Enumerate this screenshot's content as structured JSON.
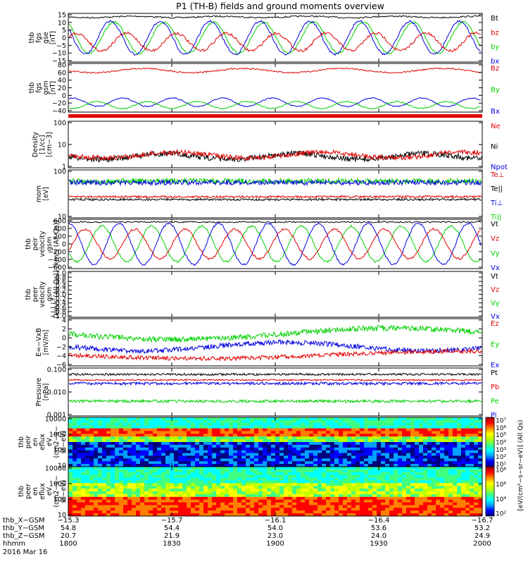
{
  "title": "P1 (TH-B) fields and ground moments overview",
  "colors": {
    "black": "#000000",
    "red": "#e00000",
    "green": "#00d000",
    "blue": "#0000e0"
  },
  "chart_data": [
    {
      "type": "line",
      "ylabel": [
        "thb",
        "fgs",
        "gse",
        "[nT]"
      ],
      "yticks": [
        "15",
        "10",
        "5",
        "0",
        "−5",
        "−10",
        "−15"
      ],
      "ylim": [
        -15,
        15
      ],
      "legend": [
        {
          "name": "Bt",
          "color": "black"
        },
        {
          "name": "bz",
          "color": "red"
        },
        {
          "name": "by",
          "color": "green"
        },
        {
          "name": "bx",
          "color": "blue"
        }
      ]
    },
    {
      "type": "line",
      "ylabel": [
        "thb",
        "fgs",
        "gsm",
        "[nT]"
      ],
      "yticks": [
        "80",
        "60",
        "40",
        "20",
        "0",
        "−20",
        "−40"
      ],
      "ylim": [
        -50,
        90
      ],
      "legend": [
        {
          "name": "Bz",
          "color": "red"
        },
        {
          "name": "By",
          "color": "green"
        },
        {
          "name": "Bx",
          "color": "blue"
        }
      ]
    },
    {
      "type": "line",
      "ylabel": [
        "Density",
        "[1/cc]",
        "[cm−3]"
      ],
      "yticks": [
        "100",
        "10",
        "1"
      ],
      "scale": "log",
      "ylim": [
        0.5,
        200
      ],
      "legend": [
        {
          "name": "Ne",
          "color": "red"
        },
        {
          "name": "Ni",
          "color": "black"
        },
        {
          "name": "Npot",
          "color": "blue"
        }
      ]
    },
    {
      "type": "line",
      "ylabel": [
        "mom",
        "[eV]"
      ],
      "yticks": [
        "100",
        "10"
      ],
      "scale": "log",
      "ylim": [
        3,
        600
      ],
      "legend": [
        {
          "name": "Te⊥",
          "color": "red"
        },
        {
          "name": "Te||",
          "color": "black"
        },
        {
          "name": "Ti⊥",
          "color": "blue"
        },
        {
          "name": "Ti||",
          "color": "green"
        }
      ]
    },
    {
      "type": "line",
      "ylabel": [
        "thb",
        "peir",
        "velocity",
        "gsm",
        "[km/s (All Qs)]"
      ],
      "yticks": [
        "600",
        "400",
        "200",
        "0",
        "−200",
        "−400",
        "−600"
      ],
      "ylim": [
        -650,
        650
      ],
      "legend": [
        {
          "name": "Vt",
          "color": "black"
        },
        {
          "name": "Vz",
          "color": "red"
        },
        {
          "name": "Vy",
          "color": "green"
        },
        {
          "name": "Vx",
          "color": "blue"
        }
      ]
    },
    {
      "type": "line",
      "ylabel": [
        "thb",
        "peer",
        "velocity",
        "gsm",
        "[km/s (All Qs)]"
      ],
      "yticks": [
        "1.0",
        "0.8",
        "0.6",
        "0.4",
        "0.2",
        "0.0",
        "−0.2",
        "−0.4",
        "−0.6",
        "−0.8",
        "−1.0"
      ],
      "ylim": [
        -1,
        1
      ],
      "legend": [
        {
          "name": "Vt",
          "color": "black"
        },
        {
          "name": "Vz",
          "color": "red"
        },
        {
          "name": "Vy",
          "color": "green"
        },
        {
          "name": "Vx",
          "color": "blue"
        }
      ]
    },
    {
      "type": "line",
      "ylabel": [
        "E=−VxB",
        "[mV/m]"
      ],
      "yticks": [
        "4",
        "2",
        "0",
        "−2",
        "−4",
        "−6"
      ],
      "ylim": [
        -7,
        5
      ],
      "legend": [
        {
          "name": "Ez",
          "color": "red"
        },
        {
          "name": "Ey",
          "color": "green"
        },
        {
          "name": "Ex",
          "color": "blue"
        }
      ]
    },
    {
      "type": "line",
      "ylabel": [
        "Pressure",
        "[nPa]"
      ],
      "yticks": [
        "0.100",
        "0.010",
        "0.001"
      ],
      "scale": "log",
      "ylim": [
        0.0005,
        0.3
      ],
      "legend": [
        {
          "name": "Pt",
          "color": "black"
        },
        {
          "name": "Pb",
          "color": "red"
        },
        {
          "name": "Pe",
          "color": "green"
        },
        {
          "name": "Pi",
          "color": "blue"
        }
      ]
    },
    {
      "type": "heatmap",
      "ylabel": [
        "thb",
        "peir",
        "en",
        "eflux",
        "eV",
        "(cm2−s−",
        "sr−eV)"
      ],
      "yticks": [
        "10000",
        "1000",
        "100",
        "10"
      ],
      "scale": "log",
      "colorbar": {
        "label": "[eV/(cm²−s−sr−eV)] (All Qs)",
        "ticks": [
          "10⁷",
          "10⁶",
          "10⁵",
          "10⁴",
          "10³",
          "10²",
          "10¹"
        ]
      }
    },
    {
      "type": "heatmap",
      "ylabel": [
        "thb",
        "peer",
        "en",
        "eflux",
        "eV",
        "(cm2−s−",
        "sr−eV)"
      ],
      "yticks": [
        "10000",
        "1000",
        "100",
        "10"
      ],
      "scale": "log",
      "colorbar": {
        "label": "[eV/(cm²−s−sr−eV)]",
        "ticks": [
          "10⁸",
          "10⁶",
          "10⁴",
          "10²"
        ]
      }
    }
  ],
  "x_axis": {
    "row_labels": [
      "thb_X−GSM",
      "thb_Y−GSM",
      "thb_Z−GSM",
      "hhmm",
      "2016 Mar 16"
    ],
    "ticks": [
      {
        "x": "−15.3",
        "y": "54.8",
        "z": "20.7",
        "t": "1800"
      },
      {
        "x": "−15.7",
        "y": "54.4",
        "z": "21.9",
        "t": "1830"
      },
      {
        "x": "−16.1",
        "y": "54.0",
        "z": "23.0",
        "t": "1900"
      },
      {
        "x": "−16.4",
        "y": "53.6",
        "z": "24.0",
        "t": "1930"
      },
      {
        "x": "−16.7",
        "y": "53.2",
        "z": "24.9",
        "t": "2000"
      }
    ]
  }
}
